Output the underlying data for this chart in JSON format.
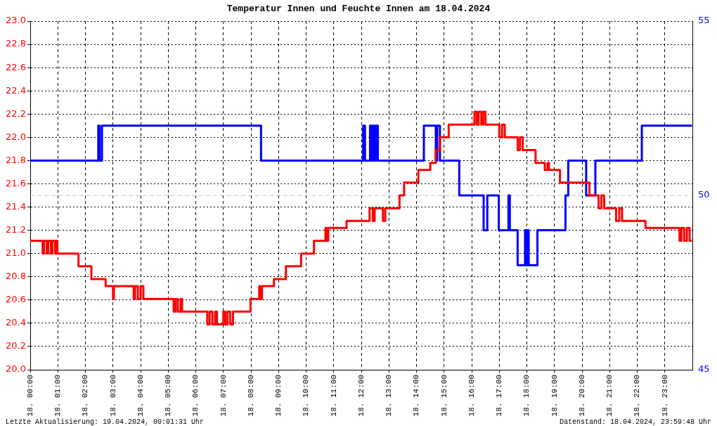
{
  "chart_data": {
    "type": "step",
    "title": "Temperatur Innen und Feuchte Innen am 18.04.2024",
    "annotations": [
      "Letzte Aktualisierung: 19.04.2024, 00:01:31 Uhr",
      "Datenstand: 18.04.2024, 23:59:48 Uhr"
    ],
    "xlim": [
      "2024-04-18T00:00",
      "2024-04-19T00:00"
    ],
    "xticks": [
      {
        "value": "2024-04-18T00:00",
        "label": "18. 00:00"
      },
      {
        "value": "2024-04-18T01:00",
        "label": "18. 01:00"
      },
      {
        "value": "2024-04-18T02:00",
        "label": "18. 02:00"
      },
      {
        "value": "2024-04-18T03:00",
        "label": "18. 03:00"
      },
      {
        "value": "2024-04-18T04:00",
        "label": "18. 04:00"
      },
      {
        "value": "2024-04-18T05:00",
        "label": "18. 05:00"
      },
      {
        "value": "2024-04-18T06:00",
        "label": "18. 06:00"
      },
      {
        "value": "2024-04-18T07:00",
        "label": "18. 07:00"
      },
      {
        "value": "2024-04-18T08:00",
        "label": "18. 08:00"
      },
      {
        "value": "2024-04-18T09:00",
        "label": "18. 09:00"
      },
      {
        "value": "2024-04-18T10:00",
        "label": "18. 10:00"
      },
      {
        "value": "2024-04-18T11:00",
        "label": "18. 11:00"
      },
      {
        "value": "2024-04-18T12:00",
        "label": "18. 12:00"
      },
      {
        "value": "2024-04-18T13:00",
        "label": "18. 13:00"
      },
      {
        "value": "2024-04-18T14:00",
        "label": "18. 14:00"
      },
      {
        "value": "2024-04-18T15:00",
        "label": "18. 15:00"
      },
      {
        "value": "2024-04-18T16:00",
        "label": "18. 16:00"
      },
      {
        "value": "2024-04-18T17:00",
        "label": "18. 17:00"
      },
      {
        "value": "2024-04-18T18:00",
        "label": "18. 18:00"
      },
      {
        "value": "2024-04-18T19:00",
        "label": "18. 19:00"
      },
      {
        "value": "2024-04-18T20:00",
        "label": "18. 20:00"
      },
      {
        "value": "2024-04-18T21:00",
        "label": "18. 21:00"
      },
      {
        "value": "2024-04-18T22:00",
        "label": "18. 22:00"
      },
      {
        "value": "2024-04-18T23:00",
        "label": "18. 23:00"
      }
    ],
    "ylim": [
      20,
      23
    ],
    "yticks": [
      {
        "value": 20,
        "label": "20.0"
      },
      {
        "value": 20.2,
        "label": "20.2"
      },
      {
        "value": 20.4,
        "label": "20.4"
      },
      {
        "value": 20.6,
        "label": "20.6"
      },
      {
        "value": 20.8,
        "label": "20.8"
      },
      {
        "value": 21,
        "label": "21.0"
      },
      {
        "value": 21.2,
        "label": "21.2"
      },
      {
        "value": 21.4,
        "label": "21.4"
      },
      {
        "value": 21.6,
        "label": "21.6"
      },
      {
        "value": 21.8,
        "label": "21.8"
      },
      {
        "value": 22,
        "label": "22.0"
      },
      {
        "value": 22.2,
        "label": "22.2"
      },
      {
        "value": 22.4,
        "label": "22.4"
      },
      {
        "value": 22.6,
        "label": "22.6"
      },
      {
        "value": 22.8,
        "label": "22.8"
      },
      {
        "value": 23,
        "label": "23.0"
      }
    ],
    "y2lim": [
      45,
      55
    ],
    "y2ticks": [
      45,
      50,
      55
    ],
    "grid": true,
    "legend": false,
    "marker": "none",
    "line_style": "solid",
    "ref_lines": [
      {
        "axis": "y2",
        "value": 50,
        "color": "#c0c0c0",
        "line_style": "dashed"
      }
    ],
    "series": [
      {
        "color": "#ff0000",
        "axis": "y",
        "x": [
          "2024-04-18T00:00",
          "2024-04-18T00:27",
          "2024-04-18T00:30",
          "2024-04-18T00:36",
          "2024-04-18T00:39",
          "2024-04-18T00:45",
          "2024-04-18T00:48",
          "2024-04-18T00:54",
          "2024-04-18T00:57",
          "2024-04-18T00:59",
          "2024-04-18T01:45",
          "2024-04-18T02:13",
          "2024-04-18T02:44",
          "2024-04-18T03:00",
          "2024-04-18T03:02",
          "2024-04-18T03:45",
          "2024-04-18T03:48",
          "2024-04-18T03:54",
          "2024-04-18T04:00",
          "2024-04-18T04:06",
          "2024-04-18T05:12",
          "2024-04-18T05:16",
          "2024-04-18T05:21",
          "2024-04-18T05:27",
          "2024-04-18T05:30",
          "2024-04-18T06:25",
          "2024-04-18T06:30",
          "2024-04-18T06:36",
          "2024-04-18T06:42",
          "2024-04-18T06:46",
          "2024-04-18T07:00",
          "2024-04-18T07:04",
          "2024-04-18T07:09",
          "2024-04-18T07:15",
          "2024-04-18T07:21",
          "2024-04-18T07:26",
          "2024-04-18T07:59",
          "2024-04-18T08:18",
          "2024-04-18T08:21",
          "2024-04-18T08:24",
          "2024-04-18T08:50",
          "2024-04-18T09:16",
          "2024-04-18T09:49",
          "2024-04-18T10:17",
          "2024-04-18T10:42",
          "2024-04-18T10:45",
          "2024-04-18T10:48",
          "2024-04-18T11:28",
          "2024-04-18T12:18",
          "2024-04-18T12:25",
          "2024-04-18T12:29",
          "2024-04-18T12:47",
          "2024-04-18T12:52",
          "2024-04-18T13:23",
          "2024-04-18T13:33",
          "2024-04-18T14:04",
          "2024-04-18T14:30",
          "2024-04-18T14:42",
          "2024-04-18T14:51",
          "2024-04-18T15:10",
          "2024-04-18T16:06",
          "2024-04-18T16:11",
          "2024-04-18T16:15",
          "2024-04-18T16:21",
          "2024-04-18T16:25",
          "2024-04-18T16:30",
          "2024-04-18T17:00",
          "2024-04-18T17:06",
          "2024-04-18T17:12",
          "2024-04-18T17:40",
          "2024-04-18T17:45",
          "2024-04-18T17:51",
          "2024-04-18T18:19",
          "2024-04-18T18:39",
          "2024-04-18T18:45",
          "2024-04-18T18:48",
          "2024-04-18T19:12",
          "2024-04-18T20:16",
          "2024-04-18T20:36",
          "2024-04-18T20:42",
          "2024-04-18T20:48",
          "2024-04-18T21:14",
          "2024-04-18T21:21",
          "2024-04-18T21:27",
          "2024-04-18T22:18",
          "2024-04-18T23:32",
          "2024-04-18T23:36",
          "2024-04-18T23:42",
          "2024-04-18T23:48",
          "2024-04-18T23:54",
          "2024-04-18T23:59"
        ],
        "values": [
          21.11,
          21.0,
          21.11,
          21.0,
          21.11,
          21.0,
          21.11,
          21.0,
          21.11,
          21.0,
          20.89,
          20.78,
          20.72,
          20.61,
          20.72,
          20.61,
          20.72,
          20.61,
          20.72,
          20.61,
          20.5,
          20.61,
          20.5,
          20.61,
          20.5,
          20.39,
          20.5,
          20.39,
          20.5,
          20.39,
          20.5,
          20.39,
          20.5,
          20.39,
          20.5,
          20.5,
          20.61,
          20.72,
          20.61,
          20.72,
          20.78,
          20.89,
          21.0,
          21.11,
          21.22,
          21.11,
          21.22,
          21.28,
          21.39,
          21.28,
          21.39,
          21.28,
          21.39,
          21.5,
          21.61,
          21.72,
          21.78,
          21.89,
          22.0,
          22.11,
          22.22,
          22.11,
          22.22,
          22.11,
          22.22,
          22.11,
          22.0,
          22.11,
          22.0,
          21.89,
          22.0,
          21.89,
          21.78,
          21.72,
          21.78,
          21.72,
          21.61,
          21.5,
          21.39,
          21.5,
          21.39,
          21.28,
          21.39,
          21.28,
          21.22,
          21.11,
          21.22,
          21.11,
          21.22,
          21.11,
          21.11
        ]
      },
      {
        "color": "#0000ff",
        "axis": "y2",
        "x": [
          "2024-04-18T00:00",
          "2024-04-18T02:28",
          "2024-04-18T02:31",
          "2024-04-18T02:36",
          "2024-04-18T08:22",
          "2024-04-18T12:04",
          "2024-04-18T12:08",
          "2024-04-18T12:19",
          "2024-04-18T12:22",
          "2024-04-18T12:25",
          "2024-04-18T12:29",
          "2024-04-18T12:32",
          "2024-04-18T12:36",
          "2024-04-18T14:16",
          "2024-04-18T14:42",
          "2024-04-18T14:45",
          "2024-04-18T14:51",
          "2024-04-18T15:33",
          "2024-04-18T16:26",
          "2024-04-18T16:34",
          "2024-04-18T16:59",
          "2024-04-18T17:20",
          "2024-04-18T17:23",
          "2024-04-18T17:40",
          "2024-04-18T17:56",
          "2024-04-18T17:59",
          "2024-04-18T18:01",
          "2024-04-18T18:04",
          "2024-04-18T18:23",
          "2024-04-18T19:24",
          "2024-04-18T19:30",
          "2024-04-18T20:09",
          "2024-04-18T20:29",
          "2024-04-18T22:10",
          "2024-04-18T23:59"
        ],
        "values": [
          51,
          52,
          51,
          52,
          51,
          52,
          51,
          52,
          51,
          52,
          51,
          52,
          51,
          52,
          51,
          52,
          51,
          50,
          49,
          50,
          49,
          50,
          49,
          48,
          49,
          48,
          49,
          48,
          49,
          50,
          51,
          50,
          51,
          52,
          52
        ]
      }
    ]
  }
}
